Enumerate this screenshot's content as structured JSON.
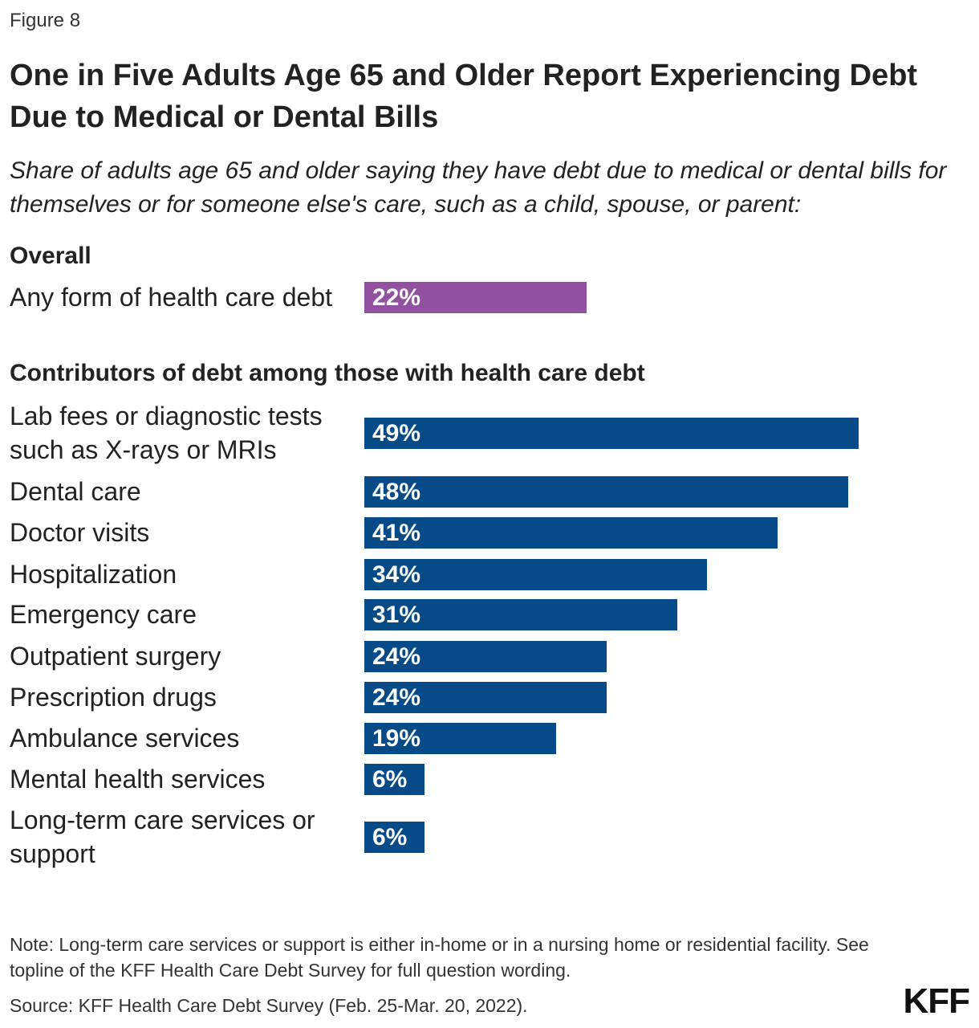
{
  "figure_label": "Figure 8",
  "chart_data": {
    "type": "bar",
    "orientation": "horizontal",
    "title": "One in Five Adults Age 65 and Older Report Experiencing Debt Due to Medical or Dental Bills",
    "subtitle": "Share of adults age 65 and older saying they have debt due to medical or dental bills for themselves or for someone else's care, such as a child, spouse, or parent:",
    "value_suffix": "%",
    "xlim": [
      0,
      50
    ],
    "grid": false,
    "groups": [
      {
        "heading": "Overall",
        "color": "#9150A0",
        "categories": [
          "Any form of health care debt"
        ],
        "values": [
          22
        ]
      },
      {
        "heading": "Contributors of debt among those with health care debt",
        "color": "#064A88",
        "categories": [
          "Lab fees or diagnostic tests such as X-rays or MRIs",
          "Dental care",
          "Doctor visits",
          "Hospitalization",
          "Emergency care",
          "Outpatient surgery",
          "Prescription drugs",
          "Ambulance services",
          "Mental health services",
          "Long-term care services or support"
        ],
        "values": [
          49,
          48,
          41,
          34,
          31,
          24,
          24,
          19,
          6,
          6
        ]
      }
    ]
  },
  "note": "Note: Long-term care services or support is either in-home or in a nursing home or residential facility. See topline of the KFF Health Care Debt Survey for full question wording.",
  "source": "Source: KFF Health Care Debt Survey (Feb. 25-Mar. 20, 2022).",
  "logo_text": "KFF"
}
